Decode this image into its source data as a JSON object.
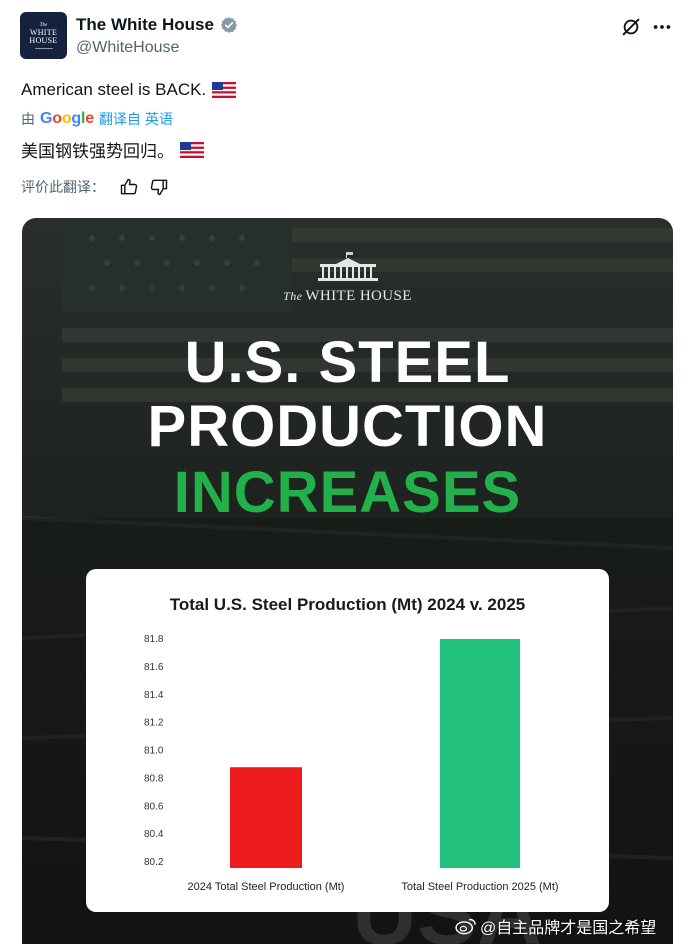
{
  "header": {
    "avatar": {
      "line1": "The",
      "line2": "WHITE",
      "line3": "HOUSE"
    },
    "name": "The White House",
    "handle": "@WhiteHouse"
  },
  "tweet": {
    "text": "American steel is BACK.",
    "translate": {
      "by": "由",
      "link": "翻译自 英语"
    },
    "translated_text": "美国钢铁强势回归。",
    "rate_label": "评价此翻译："
  },
  "media": {
    "logo_text_prefix": "The",
    "logo_text": "WHITE HOUSE",
    "headline_1": "U.S. STEEL",
    "headline_2": "PRODUCTION",
    "headline_3": "INCREASES"
  },
  "chart_data": {
    "type": "bar",
    "title": "Total U.S. Steel Production (Mt) 2024 v. 2025",
    "categories": [
      "2024 Total Steel Production (Mt)",
      "Total Steel Production 2025 (Mt)"
    ],
    "values": [
      80.88,
      81.8
    ],
    "colors": [
      "#ee1c1c",
      "#22c17d"
    ],
    "ylim": [
      80.2,
      81.8
    ],
    "yticks": [
      "81.8",
      "81.6",
      "81.4",
      "81.2",
      "81.0",
      "80.8",
      "80.6",
      "80.4",
      "80.2"
    ],
    "grid": false
  },
  "watermark": "@自主品牌才是国之希望",
  "icons": [
    "verified-badge-icon",
    "grok-icon",
    "more-icon",
    "thumbs-up-icon",
    "thumbs-down-icon",
    "us-flag-icon",
    "weibo-icon"
  ]
}
